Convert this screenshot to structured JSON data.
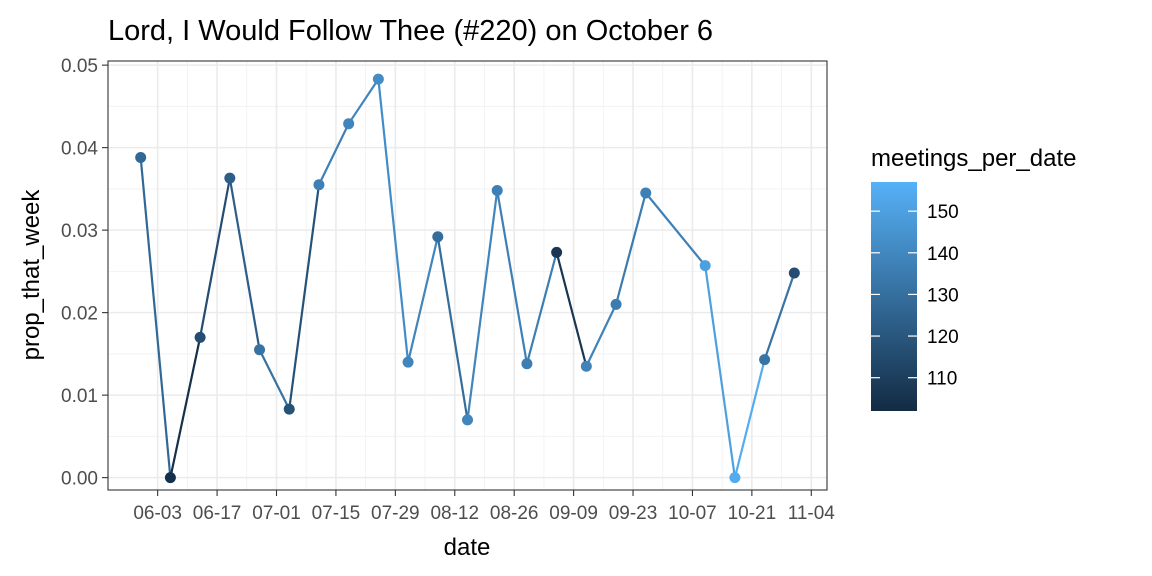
{
  "chart_data": {
    "type": "line",
    "title": "Lord, I Would Follow Thee (#220) on October 6",
    "xlabel": "date",
    "ylabel": "prop_that_week",
    "x_tick_labels": [
      "06-03",
      "06-17",
      "07-01",
      "07-15",
      "07-29",
      "08-12",
      "08-26",
      "09-09",
      "09-23",
      "10-07",
      "10-21",
      "11-04"
    ],
    "y_tick_labels": [
      "0.00",
      "0.01",
      "0.02",
      "0.03",
      "0.04",
      "0.05"
    ],
    "ylim": [
      -0.0015,
      0.0505
    ],
    "grid": true,
    "color_legend": {
      "title": "meetings_per_date",
      "range": [
        102,
        157
      ],
      "ticks": [
        110,
        120,
        130,
        140,
        150
      ],
      "tick_labels": [
        "110",
        "120",
        "130",
        "140",
        "150"
      ],
      "low_color": "#132B43",
      "high_color": "#56B1F7",
      "placement": "right"
    },
    "points": [
      {
        "x": "05-30",
        "y": 0.0388,
        "meetings": 127
      },
      {
        "x": "06-06",
        "y": 0.0,
        "meetings": 104
      },
      {
        "x": "06-13",
        "y": 0.017,
        "meetings": 116
      },
      {
        "x": "06-20",
        "y": 0.0363,
        "meetings": 123
      },
      {
        "x": "06-27",
        "y": 0.0155,
        "meetings": 131
      },
      {
        "x": "07-04",
        "y": 0.0083,
        "meetings": 118
      },
      {
        "x": "07-11",
        "y": 0.0355,
        "meetings": 137
      },
      {
        "x": "07-18",
        "y": 0.0429,
        "meetings": 139
      },
      {
        "x": "07-25",
        "y": 0.0483,
        "meetings": 142
      },
      {
        "x": "08-01",
        "y": 0.014,
        "meetings": 139
      },
      {
        "x": "08-08",
        "y": 0.0292,
        "meetings": 129
      },
      {
        "x": "08-15",
        "y": 0.007,
        "meetings": 139
      },
      {
        "x": "08-22",
        "y": 0.0348,
        "meetings": 137
      },
      {
        "x": "08-29",
        "y": 0.0138,
        "meetings": 136
      },
      {
        "x": "09-05",
        "y": 0.0273,
        "meetings": 107
      },
      {
        "x": "09-12",
        "y": 0.0135,
        "meetings": 138
      },
      {
        "x": "09-19",
        "y": 0.021,
        "meetings": 135
      },
      {
        "x": "09-26",
        "y": 0.0345,
        "meetings": 137
      },
      {
        "x": "10-10",
        "y": 0.0257,
        "meetings": 150
      },
      {
        "x": "10-17",
        "y": 0.0,
        "meetings": 155
      },
      {
        "x": "10-24",
        "y": 0.0143,
        "meetings": 132
      },
      {
        "x": "10-31",
        "y": 0.0248,
        "meetings": 116
      }
    ]
  }
}
